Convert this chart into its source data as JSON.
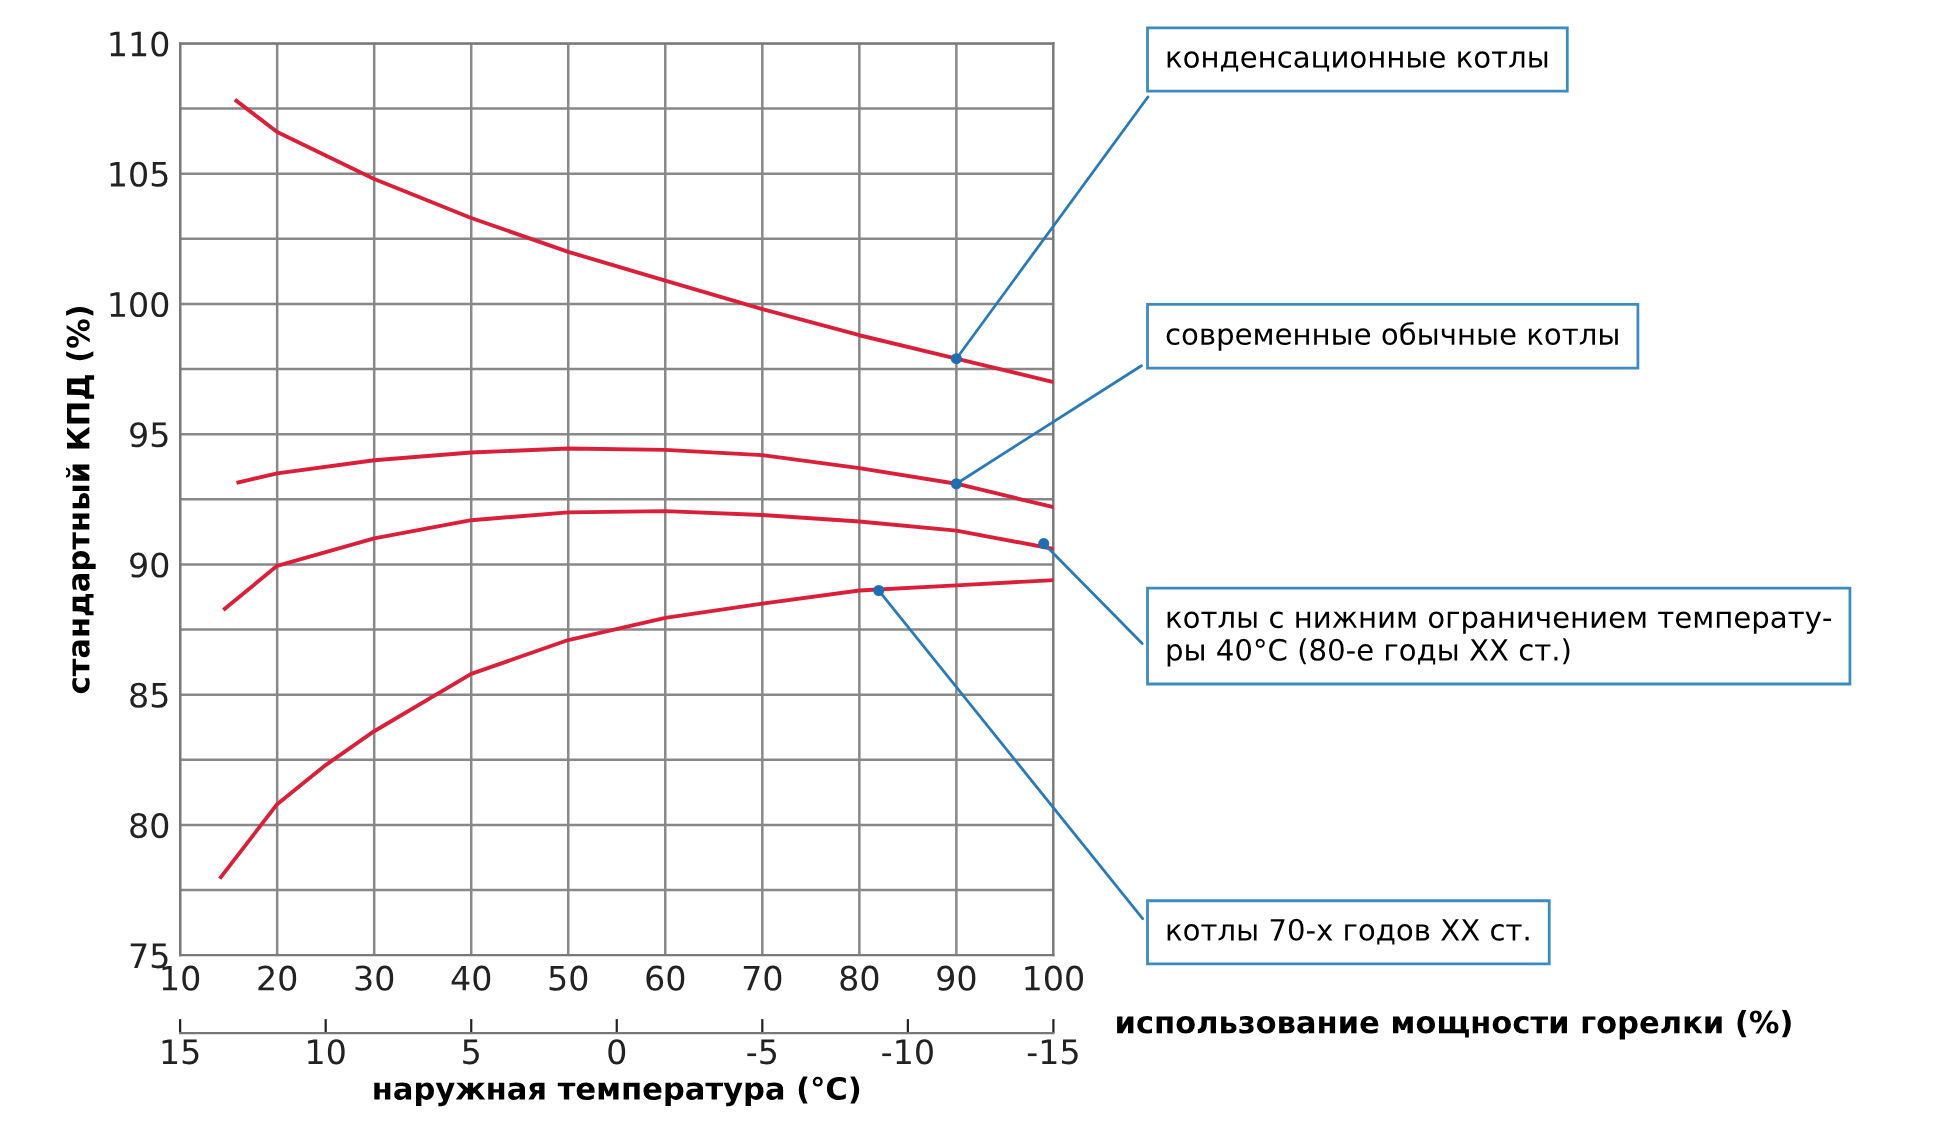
{
  "chart_data": {
    "type": "line",
    "xlabel": "использование мощности горелки (%)",
    "ylabel": "стандартный КПД (%)",
    "x2label": "наружная температура (°C)",
    "xlim": [
      10,
      100
    ],
    "xticks": [
      10,
      20,
      30,
      40,
      50,
      60,
      70,
      80,
      90,
      100
    ],
    "ylim": [
      75,
      110
    ],
    "yticks": [
      75,
      {
        "value": 77.5,
        "label": null
      },
      80,
      {
        "value": 82.5,
        "label": null
      },
      85,
      {
        "value": 87.5,
        "label": null
      },
      90,
      {
        "value": 92.5,
        "label": null
      },
      95,
      {
        "value": 97.5,
        "label": null
      },
      100,
      {
        "value": 102.5,
        "label": null
      },
      105,
      {
        "value": 107.5,
        "label": null
      },
      110
    ],
    "x2lim": [
      15,
      -15
    ],
    "x2ticks": [
      15,
      10,
      5,
      0,
      -5,
      -10,
      -15
    ],
    "grid": true,
    "marker": "none",
    "line_style": "solid",
    "series": [
      {
        "color": "#d9203a",
        "x": [
          15.8,
          20,
          30,
          40,
          50,
          60,
          70,
          80,
          90,
          100
        ],
        "values": [
          107.8,
          106.6,
          104.8,
          103.3,
          102.0,
          100.9,
          99.8,
          98.8,
          97.9,
          97.0
        ]
      },
      {
        "color": "#d9203a",
        "x": [
          16,
          20,
          30,
          40,
          50,
          60,
          70,
          80,
          90,
          100
        ],
        "values": [
          93.15,
          93.5,
          94.0,
          94.3,
          94.45,
          94.4,
          94.2,
          93.7,
          93.1,
          92.2
        ]
      },
      {
        "color": "#d9203a",
        "x": [
          14.6,
          20,
          30,
          40,
          50,
          60,
          70,
          80,
          90,
          100
        ],
        "values": [
          88.3,
          89.95,
          91.0,
          91.7,
          92.0,
          92.05,
          91.9,
          91.65,
          91.3,
          90.6
        ]
      },
      {
        "color": "#d9203a",
        "x": [
          14.2,
          20,
          25,
          30,
          40,
          50,
          60,
          70,
          80,
          90,
          100
        ],
        "values": [
          78.0,
          80.8,
          82.3,
          83.6,
          85.8,
          87.1,
          87.95,
          88.5,
          89.0,
          89.2,
          89.4
        ]
      }
    ],
    "annotations": [
      {
        "text": "конденсационные котлы",
        "x": 90,
        "y": 97.9
      },
      {
        "text": "современные обычные котлы",
        "x": 90,
        "y": 93.1
      },
      {
        "text": "котлы с нижним ограничением температу-\nры 40°C (80-е годы XX ст.)",
        "x": 99,
        "y": 90.8
      },
      {
        "text": "котлы 70-х годов XX ст.",
        "x": 82,
        "y": 89.0
      }
    ]
  }
}
